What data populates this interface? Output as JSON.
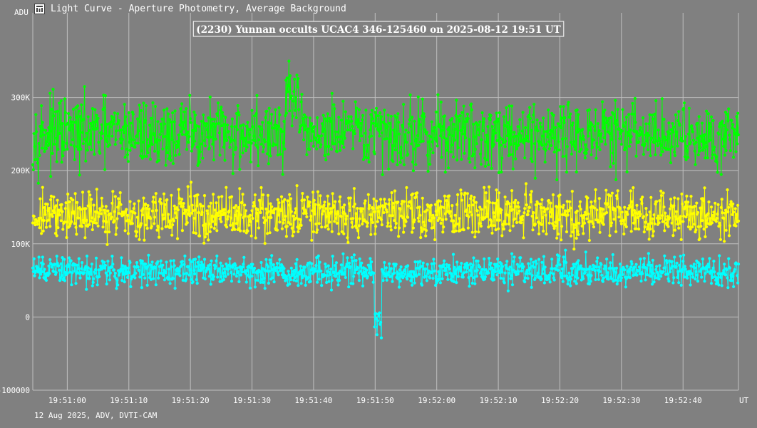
{
  "window": {
    "title": "Light Curve - Aperture Photometry, Average Background",
    "y_unit_label": "ADU",
    "footer": "12 Aug 2025, ADV, DVTI-CAM"
  },
  "icons": {
    "app": "light-curve-app-icon"
  },
  "colors": {
    "background": "#808080",
    "grid": "#c0c0c0",
    "text": "#ffffff",
    "comparison_high": "#00ff00",
    "comparison_mid": "#ffff00",
    "target": "#00ffff"
  },
  "chart_data": {
    "type": "line",
    "title": "(2230) Yunnan occults UCAC4 346-125460 on 2025-08-12  19:51 UT",
    "ylabel": "ADU",
    "xlabel": "UT",
    "ylim": [
      -100000,
      400000
    ],
    "xlim": [
      "19:50:54.4",
      "19:52:49.0"
    ],
    "y_ticks": [
      {
        "value": 300000,
        "label": "300K"
      },
      {
        "value": 200000,
        "label": "200K"
      },
      {
        "value": 100000,
        "label": "100K"
      },
      {
        "value": 0,
        "label": "0"
      },
      {
        "value": -100000,
        "label": "-100000"
      }
    ],
    "x_ticks": [
      "19:51:00",
      "19:51:10",
      "19:51:20",
      "19:51:30",
      "19:51:40",
      "19:51:50",
      "19:52:00",
      "19:52:10",
      "19:52:20",
      "19:52:30",
      "19:52:40"
    ],
    "grid": true,
    "markers": true,
    "frames_per_second": 10,
    "series": [
      {
        "color": "#00ff00",
        "baseline": 250000,
        "noise_amplitude": 40000,
        "note_levels": [
          {
            "from": "19:51:35.5",
            "to": "19:51:37.5",
            "mean": 300000
          }
        ]
      },
      {
        "color": "#ffff00",
        "baseline": 140000,
        "noise_amplitude": 28000,
        "note_levels": []
      },
      {
        "color": "#00ffff",
        "baseline": 63000,
        "noise_amplitude": 17000,
        "note_levels": [
          {
            "from": "19:51:49.8",
            "to": "19:51:51.0",
            "mean": -10000
          }
        ]
      }
    ]
  }
}
